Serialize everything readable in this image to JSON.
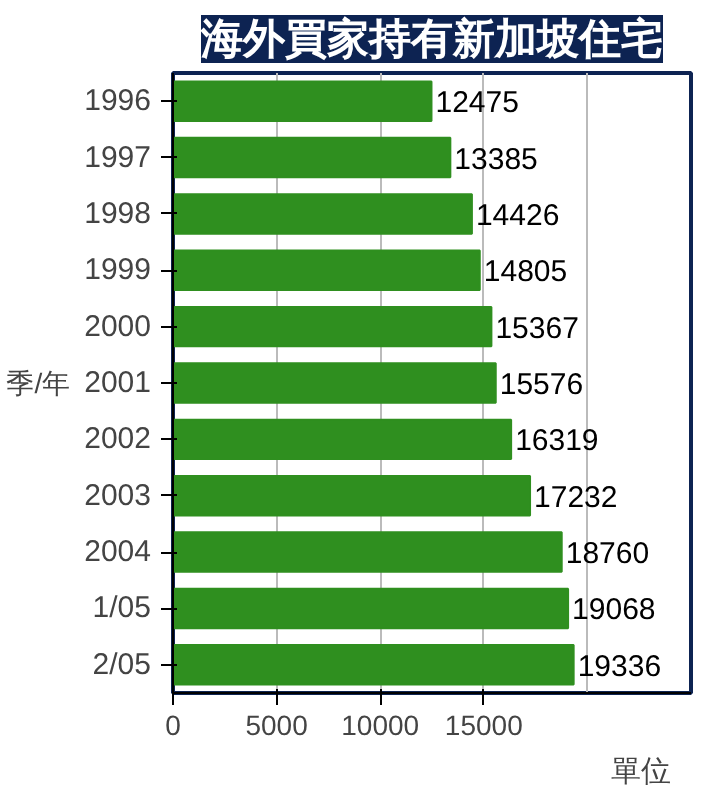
{
  "chart_data": {
    "type": "bar",
    "orientation": "horizontal",
    "title": "海外買家持有新加坡住宅",
    "xlabel": "單位",
    "ylabel": "季/年",
    "categories": [
      "1996",
      "1997",
      "1998",
      "1999",
      "2000",
      "2001",
      "2002",
      "2003",
      "2004",
      "1/05",
      "2/05"
    ],
    "values": [
      12475,
      13385,
      14426,
      14805,
      15367,
      15576,
      16319,
      17232,
      18760,
      19068,
      19336
    ],
    "color": "#2f8f1f",
    "data_labels": true,
    "xlim": [
      0,
      25000
    ],
    "xticks": [
      0,
      5000,
      10000,
      15000
    ],
    "grid": "x"
  }
}
